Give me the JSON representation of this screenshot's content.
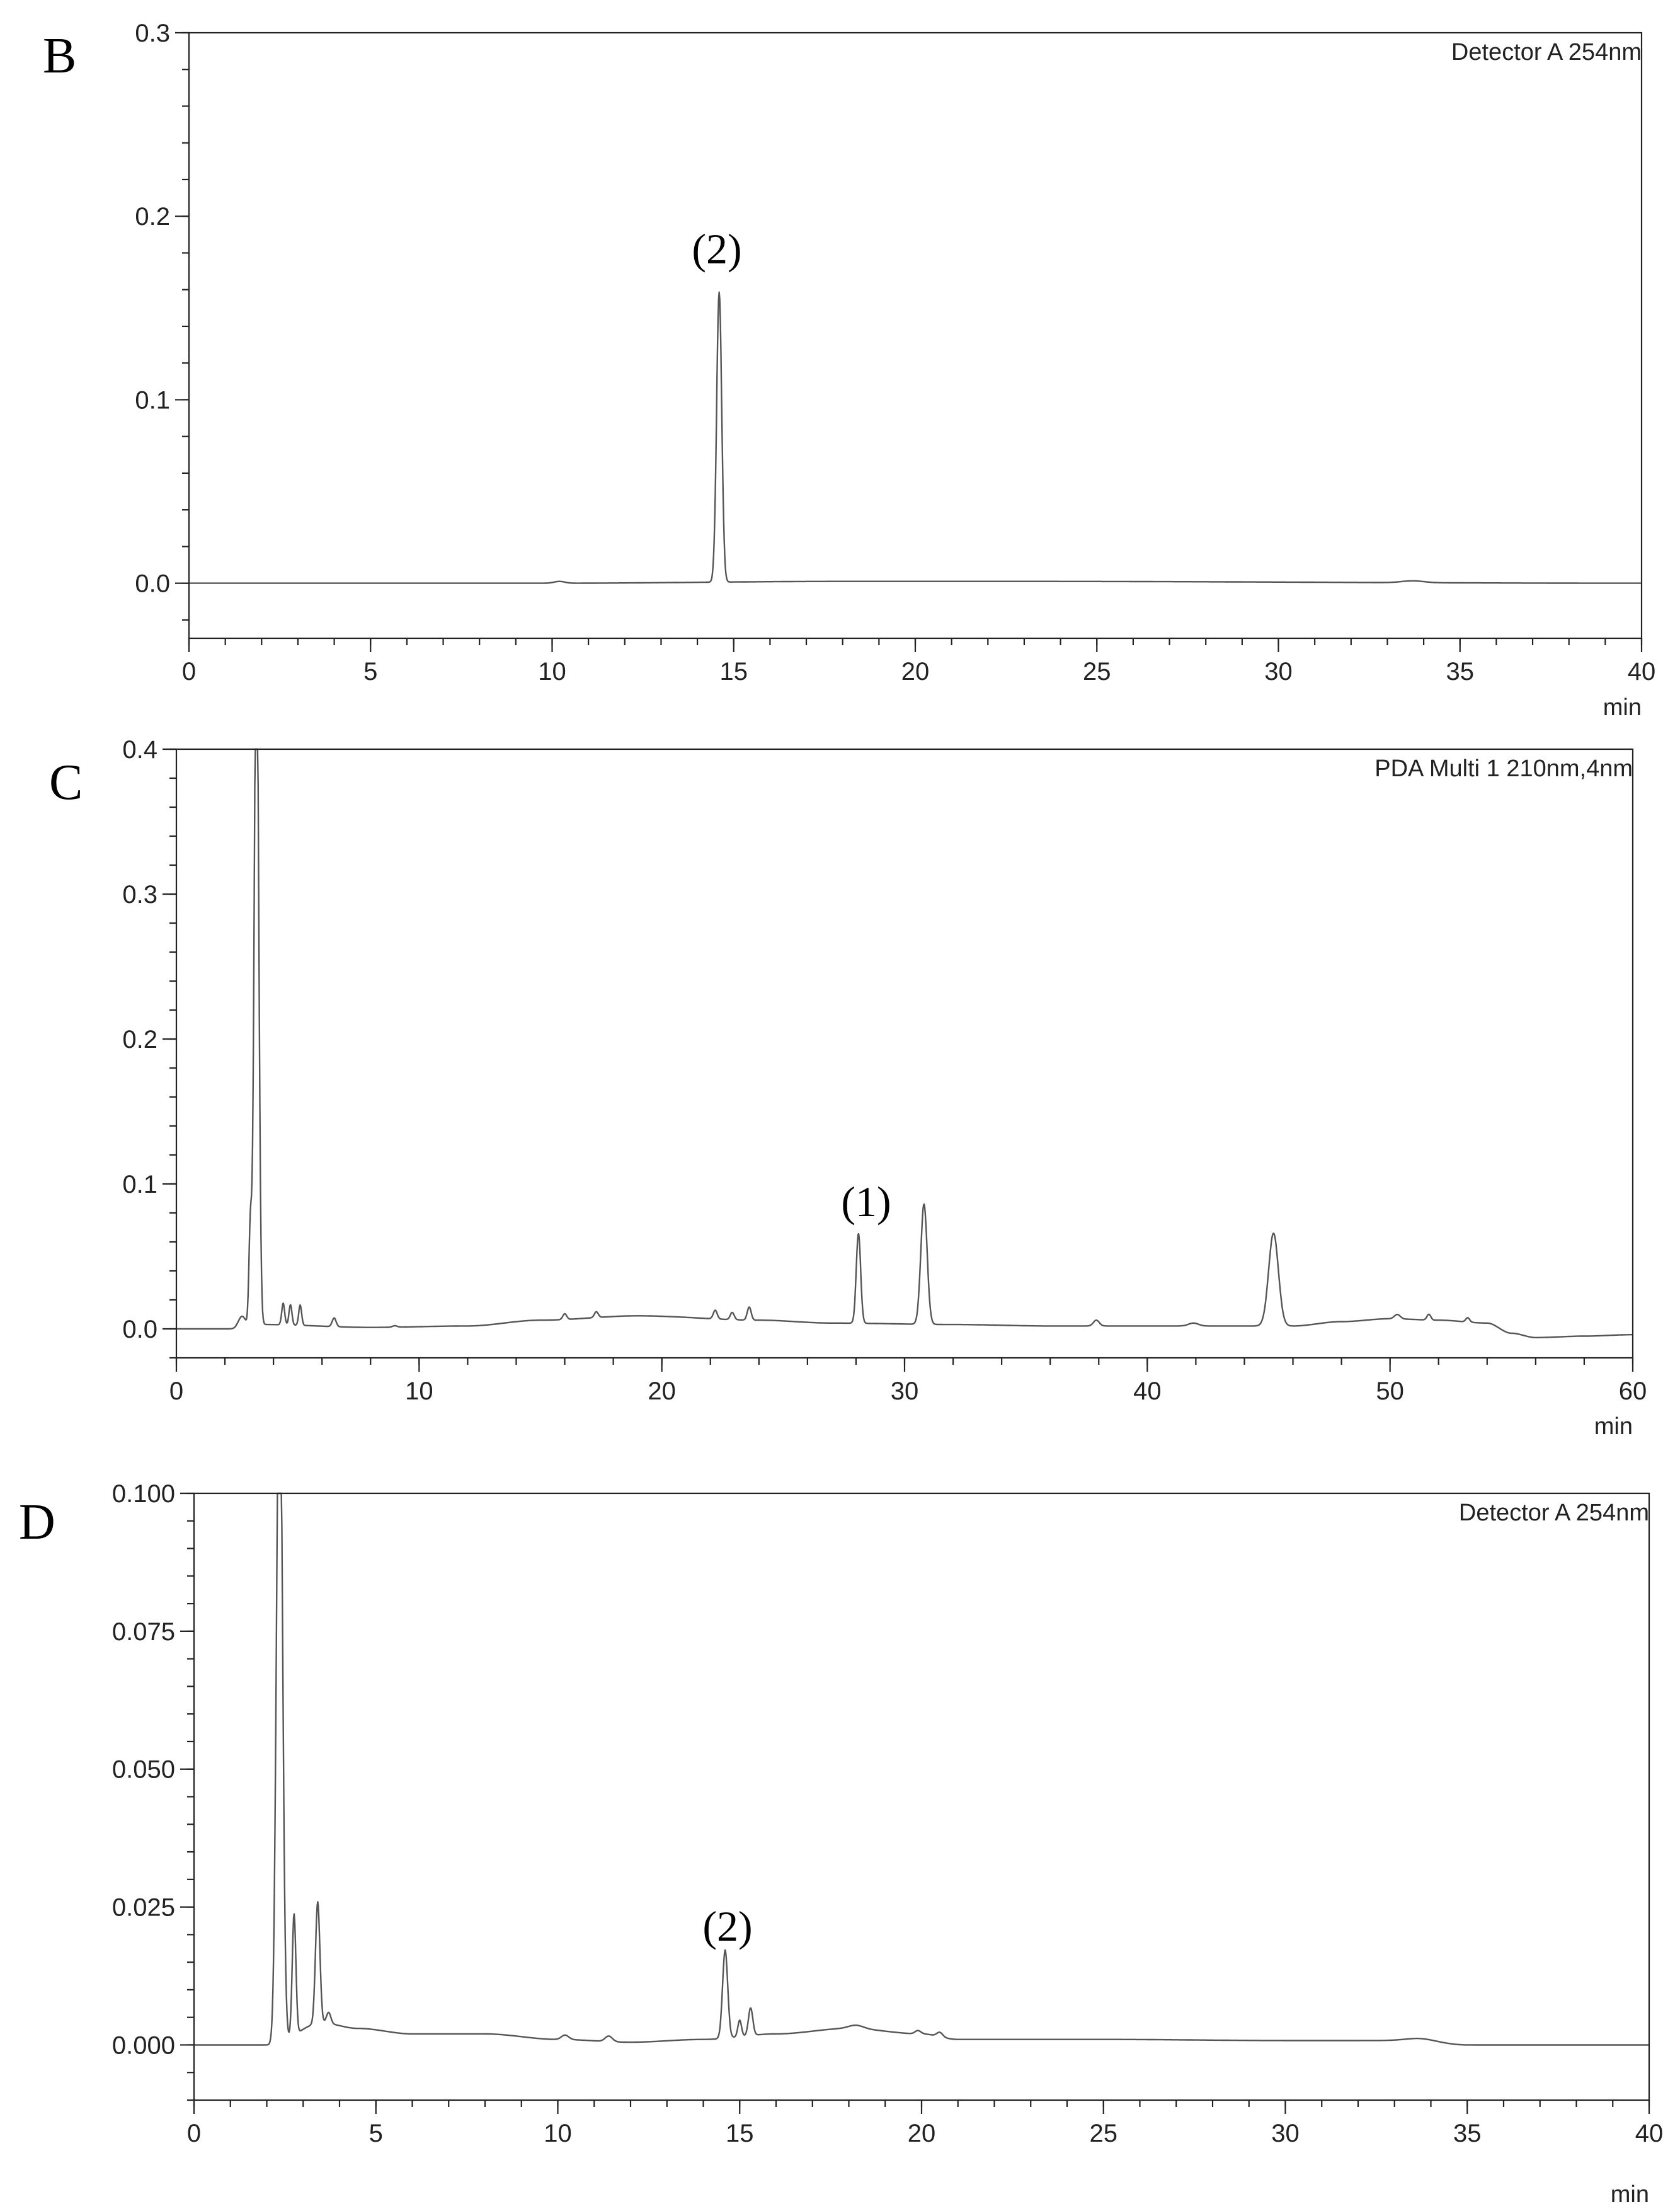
{
  "chart_data": [
    {
      "type": "line",
      "panel_label": "B",
      "detector": "Detector A 254nm",
      "xlabel": "min",
      "ylabel": "",
      "xlim": [
        0,
        40
      ],
      "ylim": [
        -0.03,
        0.3
      ],
      "xticks": [
        "0",
        "5",
        "10",
        "15",
        "20",
        "25",
        "30",
        "35",
        "40"
      ],
      "yticks": [
        "0.0",
        "0.1",
        "0.2",
        "0.3"
      ],
      "annotations": [
        {
          "text": "(2)",
          "x": 14.6,
          "y": 0.16
        }
      ],
      "baseline": [
        [
          0,
          0.0
        ],
        [
          10,
          0.0
        ],
        [
          18,
          0.001
        ],
        [
          23,
          0.001
        ],
        [
          40,
          0.0
        ]
      ],
      "peaks": [
        {
          "x": 10.2,
          "h": 0.001,
          "w": 0.15
        },
        {
          "x": 14.6,
          "h": 0.158,
          "w": 0.07
        },
        {
          "x": 33.7,
          "h": 0.001,
          "w": 0.3
        }
      ]
    },
    {
      "type": "line",
      "panel_label": "C",
      "detector": "PDA Multi 1 210nm,4nm",
      "xlabel": "min",
      "ylabel": "",
      "xlim": [
        0,
        60
      ],
      "ylim": [
        -0.02,
        0.4
      ],
      "xticks": [
        "0",
        "10",
        "20",
        "30",
        "40",
        "50",
        "60"
      ],
      "yticks": [
        "0.0",
        "0.1",
        "0.2",
        "0.3",
        "0.4"
      ],
      "annotations": [
        {
          "text": "(1)",
          "x": 28.1,
          "y": 0.066
        }
      ],
      "baseline": [
        [
          0,
          0.0
        ],
        [
          2.3,
          0.0
        ],
        [
          3.6,
          0.003
        ],
        [
          8,
          0.001
        ],
        [
          12,
          0.002
        ],
        [
          15,
          0.006
        ],
        [
          19,
          0.009
        ],
        [
          24,
          0.006
        ],
        [
          27,
          0.004
        ],
        [
          32,
          0.003
        ],
        [
          36,
          0.002
        ],
        [
          40,
          0.002
        ],
        [
          43,
          0.002
        ],
        [
          46,
          0.002
        ],
        [
          48,
          0.005
        ],
        [
          50,
          0.007
        ],
        [
          52,
          0.006
        ],
        [
          54,
          0.004
        ],
        [
          55,
          -0.003
        ],
        [
          56,
          -0.006
        ],
        [
          58,
          -0.005
        ],
        [
          60,
          -0.004
        ]
      ],
      "peaks": [
        {
          "x": 2.7,
          "h": 0.008,
          "w": 0.15
        },
        {
          "x": 3.05,
          "h": 0.07,
          "w": 0.06
        },
        {
          "x": 3.3,
          "h": 0.5,
          "w": 0.09
        },
        {
          "x": 4.4,
          "h": 0.015,
          "w": 0.06
        },
        {
          "x": 4.7,
          "h": 0.014,
          "w": 0.06
        },
        {
          "x": 5.1,
          "h": 0.014,
          "w": 0.06
        },
        {
          "x": 6.5,
          "h": 0.006,
          "w": 0.08
        },
        {
          "x": 9.0,
          "h": 0.001,
          "w": 0.1
        },
        {
          "x": 16.0,
          "h": 0.004,
          "w": 0.08
        },
        {
          "x": 17.3,
          "h": 0.004,
          "w": 0.08
        },
        {
          "x": 22.2,
          "h": 0.006,
          "w": 0.08
        },
        {
          "x": 22.9,
          "h": 0.005,
          "w": 0.08
        },
        {
          "x": 23.6,
          "h": 0.009,
          "w": 0.08
        },
        {
          "x": 28.1,
          "h": 0.062,
          "w": 0.09
        },
        {
          "x": 30.8,
          "h": 0.083,
          "w": 0.13
        },
        {
          "x": 37.9,
          "h": 0.004,
          "w": 0.12
        },
        {
          "x": 41.9,
          "h": 0.002,
          "w": 0.2
        },
        {
          "x": 45.2,
          "h": 0.064,
          "w": 0.2
        },
        {
          "x": 50.3,
          "h": 0.003,
          "w": 0.12
        },
        {
          "x": 51.6,
          "h": 0.004,
          "w": 0.08
        },
        {
          "x": 53.2,
          "h": 0.003,
          "w": 0.08
        }
      ]
    },
    {
      "type": "line",
      "panel_label": "D",
      "detector": "Detector A 254nm",
      "xlabel": "min",
      "ylabel": "",
      "xlim": [
        0,
        40
      ],
      "ylim": [
        -0.01,
        0.1
      ],
      "xticks": [
        "0",
        "5",
        "10",
        "15",
        "20",
        "25",
        "30",
        "35",
        "40"
      ],
      "yticks": [
        "0.000",
        "0.025",
        "0.050",
        "0.075",
        "0.100"
      ],
      "annotations": [
        {
          "text": "(2)",
          "x": 14.6,
          "y": 0.017
        }
      ],
      "baseline": [
        [
          0,
          0.0
        ],
        [
          2.1,
          0.0
        ],
        [
          3.5,
          0.004
        ],
        [
          4.5,
          0.003
        ],
        [
          6,
          0.002
        ],
        [
          8,
          0.002
        ],
        [
          10,
          0.001
        ],
        [
          12,
          0.0005
        ],
        [
          14,
          0.001
        ],
        [
          16,
          0.002
        ],
        [
          18,
          0.003
        ],
        [
          20,
          0.002
        ],
        [
          21,
          0.001
        ],
        [
          25,
          0.001
        ],
        [
          30,
          0.0008
        ],
        [
          33.5,
          0.0008
        ],
        [
          35,
          0.0
        ],
        [
          40,
          0.0
        ]
      ],
      "peaks": [
        {
          "x": 2.35,
          "h": 0.13,
          "w": 0.08
        },
        {
          "x": 2.75,
          "h": 0.022,
          "w": 0.05
        },
        {
          "x": 3.4,
          "h": 0.022,
          "w": 0.06
        },
        {
          "x": 3.7,
          "h": 0.002,
          "w": 0.06
        },
        {
          "x": 10.2,
          "h": 0.0008,
          "w": 0.1
        },
        {
          "x": 11.4,
          "h": 0.001,
          "w": 0.1
        },
        {
          "x": 14.6,
          "h": 0.016,
          "w": 0.07
        },
        {
          "x": 15.0,
          "h": 0.003,
          "w": 0.05
        },
        {
          "x": 15.3,
          "h": 0.005,
          "w": 0.06
        },
        {
          "x": 18.2,
          "h": 0.0006,
          "w": 0.2
        },
        {
          "x": 19.9,
          "h": 0.0006,
          "w": 0.08
        },
        {
          "x": 20.5,
          "h": 0.0008,
          "w": 0.08
        },
        {
          "x": 33.7,
          "h": 0.0004,
          "w": 0.4
        }
      ]
    }
  ]
}
